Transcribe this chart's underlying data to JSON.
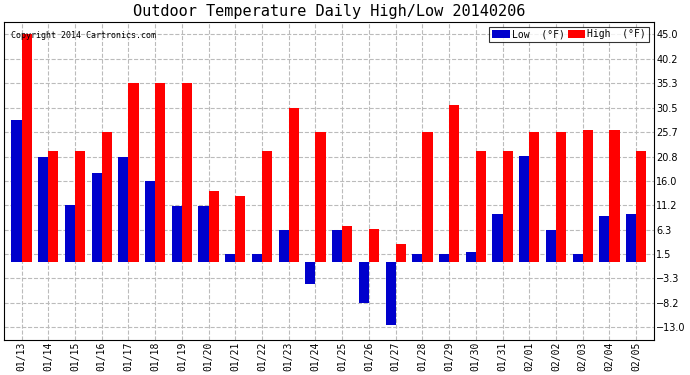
{
  "title": "Outdoor Temperature Daily High/Low 20140206",
  "copyright": "Copyright 2014 Cartronics.com",
  "background_color": "#ffffff",
  "dates": [
    "01/13",
    "01/14",
    "01/15",
    "01/16",
    "01/17",
    "01/18",
    "01/19",
    "01/20",
    "01/21",
    "01/22",
    "01/23",
    "01/24",
    "01/25",
    "01/26",
    "01/27",
    "01/28",
    "01/29",
    "01/30",
    "01/31",
    "02/01",
    "02/02",
    "02/03",
    "02/04",
    "02/05"
  ],
  "highs": [
    45.0,
    22.0,
    22.0,
    25.7,
    35.3,
    35.3,
    35.3,
    14.0,
    13.0,
    22.0,
    30.5,
    25.7,
    7.0,
    6.5,
    3.5,
    25.7,
    31.0,
    22.0,
    22.0,
    25.7,
    25.7,
    26.0,
    26.0,
    22.0
  ],
  "lows": [
    28.0,
    20.8,
    11.2,
    17.5,
    20.8,
    16.0,
    11.0,
    11.0,
    1.5,
    1.5,
    6.3,
    -4.5,
    6.3,
    -8.2,
    -12.5,
    1.5,
    1.5,
    2.0,
    9.5,
    21.0,
    6.3,
    1.5,
    9.0,
    9.5
  ],
  "high_color": "#ff0000",
  "low_color": "#0000cc",
  "grid_color": "#bbbbbb",
  "bar_width": 0.38,
  "yticks": [
    45.0,
    40.2,
    35.3,
    30.5,
    25.7,
    20.8,
    16.0,
    11.2,
    6.3,
    1.5,
    -3.3,
    -8.2,
    -13.0
  ],
  "ylim": [
    -15.5,
    47.5
  ],
  "title_fontsize": 11,
  "tick_fontsize": 7,
  "figsize": [
    6.9,
    3.75
  ],
  "dpi": 100
}
